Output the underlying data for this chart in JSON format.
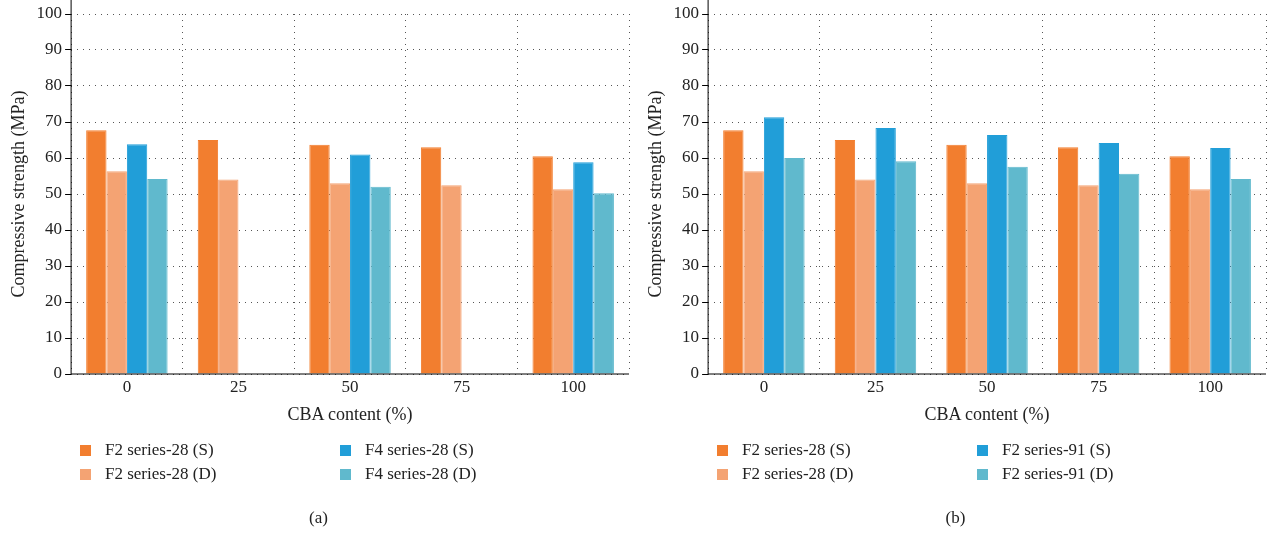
{
  "chart_data": [
    {
      "type": "bar",
      "xlabel": "CBA content (%)",
      "ylabel": "Compressive strength (MPa)",
      "categories": [
        "0",
        "25",
        "50",
        "75",
        "100"
      ],
      "ylim": [
        0,
        100
      ],
      "yticks": [
        0,
        10,
        20,
        30,
        40,
        50,
        60,
        70,
        80,
        90,
        100
      ],
      "grid": true,
      "legend": "bottom",
      "annotations": [
        "(a)"
      ],
      "series": [
        {
          "name": "F2 series-28 (S)",
          "color": "#f27e2f",
          "values": [
            67.7,
            65,
            63.7,
            63,
            60.5
          ]
        },
        {
          "name": "F2 series-28 (D)",
          "color": "#f4a373",
          "values": [
            56.3,
            54,
            53,
            52.4,
            51.3
          ]
        },
        {
          "name": "F4 series-28 (S)",
          "color": "#219ed8",
          "values": [
            63.8,
            null,
            61,
            null,
            58.8
          ]
        },
        {
          "name": "F4 series-28 (D)",
          "color": "#60b9cd",
          "values": [
            54.2,
            null,
            52,
            null,
            50.2
          ]
        }
      ]
    },
    {
      "type": "bar",
      "xlabel": "CBA content (%)",
      "ylabel": "Compressive strength (MPa)",
      "categories": [
        "0",
        "25",
        "50",
        "75",
        "100"
      ],
      "ylim": [
        0,
        100
      ],
      "yticks": [
        0,
        10,
        20,
        30,
        40,
        50,
        60,
        70,
        80,
        90,
        100
      ],
      "grid": true,
      "legend": "bottom",
      "annotations": [
        "(b)"
      ],
      "series": [
        {
          "name": "F2 series-28 (S)",
          "color": "#f27e2f",
          "values": [
            67.7,
            65,
            63.7,
            63,
            60.5
          ]
        },
        {
          "name": "F2 series-28 (D)",
          "color": "#f4a373",
          "values": [
            56.3,
            54,
            53,
            52.4,
            51.3
          ]
        },
        {
          "name": "F2 series-91 (S)",
          "color": "#219ed8",
          "values": [
            71.3,
            68.3,
            66.4,
            64.2,
            62.8
          ]
        },
        {
          "name": "F2 series-91 (D)",
          "color": "#60b9cd",
          "values": [
            60,
            59.1,
            57.6,
            55.6,
            54.2
          ]
        }
      ]
    }
  ]
}
